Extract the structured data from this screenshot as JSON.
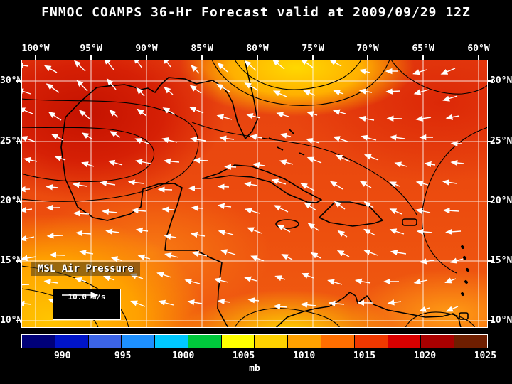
{
  "title": "FNMOC COAMPS 36-Hr Forecast valid at 2009/09/29 12Z",
  "map": {
    "lon_labels": [
      "100°W",
      "95°W",
      "90°W",
      "85°W",
      "80°W",
      "75°W",
      "70°W",
      "65°W",
      "60°W"
    ],
    "lat_labels": [
      "30°N",
      "25°N",
      "20°N",
      "15°N",
      "10°N"
    ],
    "overlay_label": "MSL Air Pressure",
    "wind_scale_label": "10.0 m/s"
  },
  "colorbar": {
    "unit": "mb",
    "tick_labels": [
      "990",
      "995",
      "1000",
      "1005",
      "1010",
      "1015",
      "1020",
      "1025"
    ],
    "colors": [
      "#000078",
      "#0014c8",
      "#3c64e6",
      "#1e90ff",
      "#00c8ff",
      "#00c83c",
      "#ffff00",
      "#ffd200",
      "#ffa000",
      "#ff6e00",
      "#f03800",
      "#d80000",
      "#a80000",
      "#6e1e00"
    ]
  },
  "chart_data": {
    "type": "heatmap",
    "title": "MSL Air Pressure",
    "units": "mb",
    "colorbar_ticks": [
      990,
      995,
      1000,
      1005,
      1010,
      1015,
      1020,
      1025
    ],
    "lon_range": [
      "100°W",
      "60°W"
    ],
    "lat_range": [
      "10°N",
      "30°N"
    ],
    "overlay": "wind vectors, reference 10.0 m/s"
  }
}
